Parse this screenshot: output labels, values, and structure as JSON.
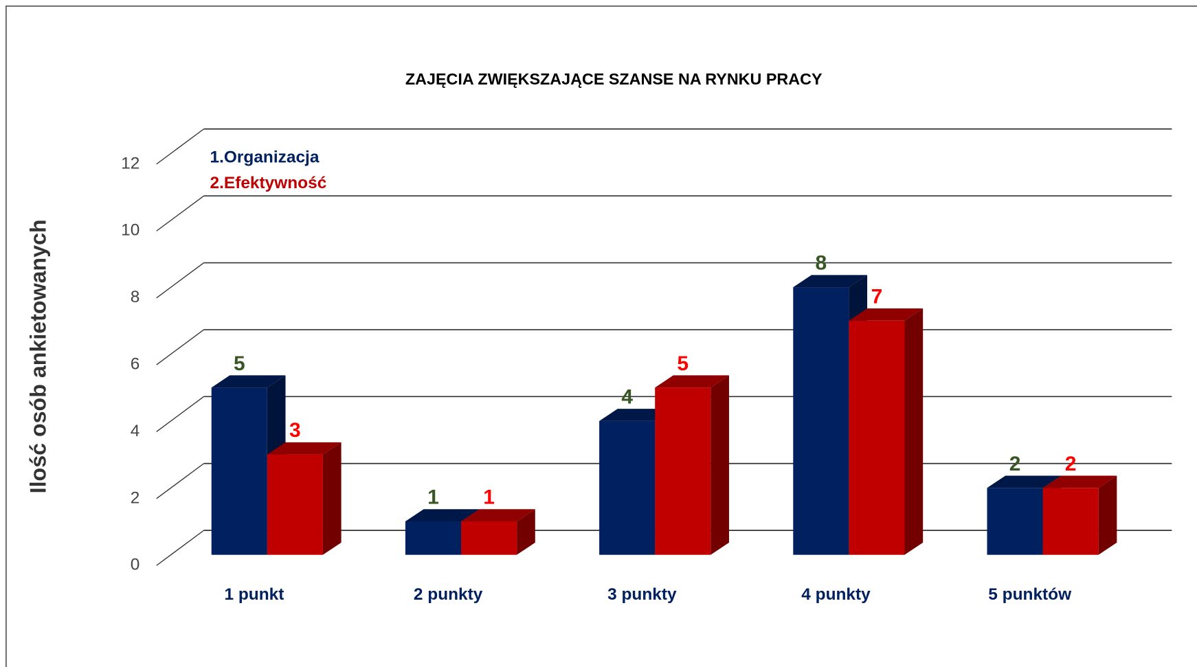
{
  "chart_data": {
    "type": "bar3d",
    "title": "ZAJĘCIA ZWIĘKSZAJĄCE SZANSE NA RYNKU PRACY",
    "y_label": "Ilość osób ankietowanych",
    "categories": [
      "1 punkt",
      "2 punkty",
      "3 punkty",
      "4 punkty",
      "5 punktów"
    ],
    "series": [
      {
        "name": "1.Organizacja",
        "color": "#002060",
        "label_color": "#375623",
        "values": [
          5,
          1,
          4,
          8,
          2
        ]
      },
      {
        "name": "2.Efektywność",
        "color": "#c00000",
        "label_color": "#ff0000",
        "values": [
          3,
          1,
          5,
          7,
          2
        ]
      }
    ],
    "ylim": [
      0,
      12
    ],
    "yticks": [
      0,
      2,
      4,
      6,
      8,
      10,
      12
    ],
    "grid": true,
    "legend": "top-left"
  }
}
